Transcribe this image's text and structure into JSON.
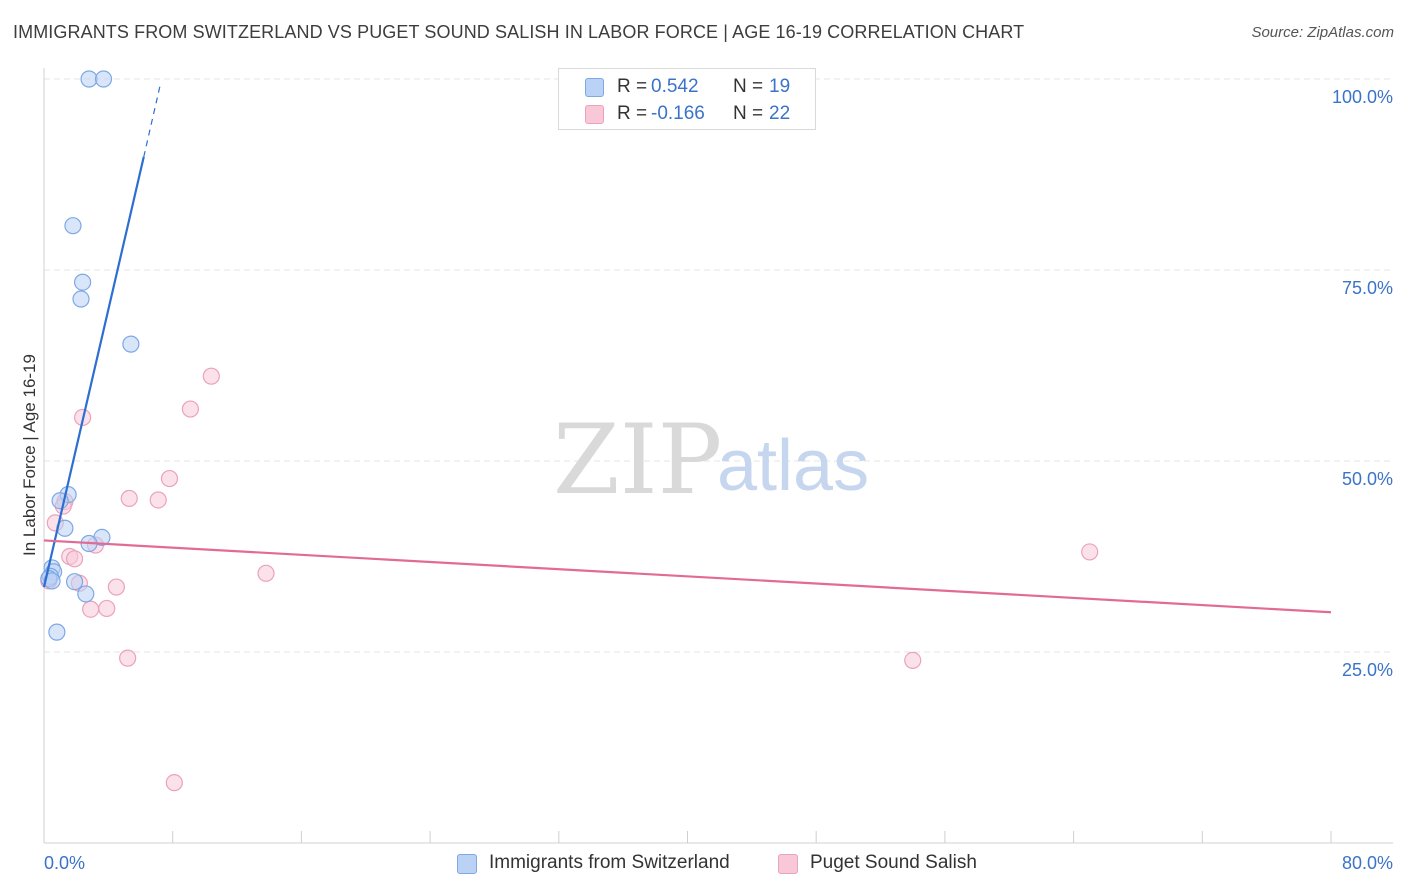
{
  "title": "IMMIGRANTS FROM SWITZERLAND VS PUGET SOUND SALISH IN LABOR FORCE | AGE 16-19 CORRELATION CHART",
  "source": "Source: ZipAtlas.com",
  "watermark": {
    "zip": "ZIP",
    "atlas": "atlas"
  },
  "legend_top": {
    "rows": [
      {
        "r_label": "R =",
        "r_value": "0.542",
        "n_label": "N =",
        "n_value": "19"
      },
      {
        "r_label": "R =",
        "r_value": "-0.166",
        "n_label": "N =",
        "n_value": "22"
      }
    ]
  },
  "legend_bottom": {
    "items": [
      {
        "label": "Immigrants from Switzerland"
      },
      {
        "label": "Puget Sound Salish"
      }
    ]
  },
  "colors": {
    "blue_fill": "#b9d2f5",
    "blue_stroke": "#7ea8e4",
    "blue_line": "#2d6fd1",
    "pink_fill": "#f8c8d8",
    "pink_stroke": "#eba2bb",
    "pink_line": "#e26b95",
    "grid": "#e6e6e6",
    "tick_text": "#3a73c8"
  },
  "chart_data": {
    "type": "scatter",
    "title": "IMMIGRANTS FROM SWITZERLAND VS PUGET SOUND SALISH IN LABOR FORCE | AGE 16-19 CORRELATION CHART",
    "xlabel": "",
    "ylabel": "In Labor Force | Age 16-19",
    "xlim": [
      0,
      80
    ],
    "ylim": [
      0,
      102
    ],
    "x_tick_labels": [
      "0.0%",
      "80.0%"
    ],
    "y_ticks": [
      25,
      50,
      75,
      100
    ],
    "y_tick_labels": [
      "25.0%",
      "50.0%",
      "75.0%",
      "100.0%"
    ],
    "grid": true,
    "legend_position": "top-center",
    "series": [
      {
        "name": "Immigrants from Switzerland",
        "r": 0.542,
        "n": 19,
        "points": [
          {
            "x": 2.8,
            "y": 100
          },
          {
            "x": 3.7,
            "y": 100
          },
          {
            "x": 1.8,
            "y": 80.8
          },
          {
            "x": 2.4,
            "y": 73.4
          },
          {
            "x": 2.3,
            "y": 71.2
          },
          {
            "x": 5.4,
            "y": 65.3
          },
          {
            "x": 1.5,
            "y": 45.6
          },
          {
            "x": 1.0,
            "y": 44.8
          },
          {
            "x": 1.3,
            "y": 41.2
          },
          {
            "x": 3.6,
            "y": 40.0
          },
          {
            "x": 2.8,
            "y": 39.2
          },
          {
            "x": 0.5,
            "y": 36.0
          },
          {
            "x": 0.6,
            "y": 35.5
          },
          {
            "x": 0.4,
            "y": 34.9
          },
          {
            "x": 0.3,
            "y": 34.6
          },
          {
            "x": 0.5,
            "y": 34.3
          },
          {
            "x": 1.9,
            "y": 34.2
          },
          {
            "x": 2.6,
            "y": 32.6
          },
          {
            "x": 0.8,
            "y": 27.6
          }
        ],
        "trend": {
          "x0": 0.0,
          "y0": 33.5,
          "x1": 6.2,
          "y1": 89.8,
          "dash_to_x": 7.2,
          "dash_to_y": 99.0
        }
      },
      {
        "name": "Puget Sound Salish",
        "r": -0.166,
        "n": 22,
        "points": [
          {
            "x": 10.4,
            "y": 61.1
          },
          {
            "x": 9.1,
            "y": 56.8
          },
          {
            "x": 2.4,
            "y": 55.7
          },
          {
            "x": 7.8,
            "y": 47.7
          },
          {
            "x": 5.3,
            "y": 45.1
          },
          {
            "x": 7.1,
            "y": 44.9
          },
          {
            "x": 1.3,
            "y": 44.7
          },
          {
            "x": 1.2,
            "y": 44.1
          },
          {
            "x": 0.7,
            "y": 41.9
          },
          {
            "x": 3.2,
            "y": 39.0
          },
          {
            "x": 1.6,
            "y": 37.5
          },
          {
            "x": 1.9,
            "y": 37.2
          },
          {
            "x": 13.8,
            "y": 35.3
          },
          {
            "x": 2.2,
            "y": 34.0
          },
          {
            "x": 4.5,
            "y": 33.5
          },
          {
            "x": 0.3,
            "y": 34.3
          },
          {
            "x": 2.9,
            "y": 30.6
          },
          {
            "x": 3.9,
            "y": 30.7
          },
          {
            "x": 5.2,
            "y": 24.2
          },
          {
            "x": 54.0,
            "y": 23.9
          },
          {
            "x": 65.0,
            "y": 38.1
          },
          {
            "x": 8.1,
            "y": 7.9
          }
        ],
        "trend": {
          "x0": 0.0,
          "y0": 39.6,
          "x1": 80.0,
          "y1": 30.2
        }
      }
    ]
  }
}
